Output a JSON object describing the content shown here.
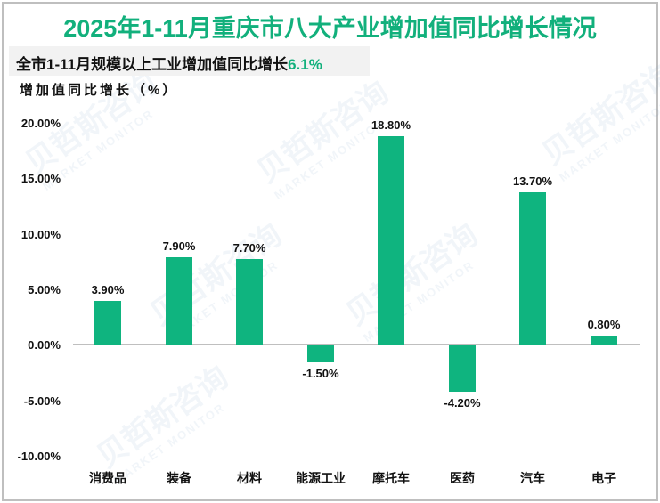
{
  "title": "2025年1-11月重庆市八大产业增加值同比增长情况",
  "subtitle": {
    "text": "全市1-11月规模以上工业增加值同比增长",
    "highlight": "6.1%"
  },
  "watermark": {
    "text": "贝哲斯咨询",
    "subtext": "MARKET MONITOR"
  },
  "colors": {
    "accent": "#12b07c",
    "bar": "#0fb47f",
    "axis": "#bfbfbf",
    "subtitle_bg": "#f2f2f2"
  },
  "chart_data": {
    "type": "bar",
    "title": "2025年1-11月重庆市八大产业增加值同比增长情况",
    "subtitle": "全市1-11月规模以上工业增加值同比增长6.1%",
    "xlabel": "",
    "ylabel": "增加值同比增长（%）",
    "categories": [
      "消费品",
      "装备",
      "材料",
      "能源工业",
      "摩托车",
      "医药",
      "汽车",
      "电子"
    ],
    "values": [
      3.9,
      7.9,
      7.7,
      -1.5,
      18.8,
      -4.2,
      13.7,
      0.8
    ],
    "value_labels": [
      "3.90%",
      "7.90%",
      "7.70%",
      "-1.50%",
      "18.80%",
      "-4.20%",
      "13.70%",
      "0.80%"
    ],
    "ylim": [
      -10,
      20
    ],
    "yticks": [
      "20.00%",
      "15.00%",
      "10.00%",
      "5.00%",
      "0.00%",
      "-5.00%",
      "-10.00%"
    ],
    "grid": false,
    "legend": "none"
  }
}
